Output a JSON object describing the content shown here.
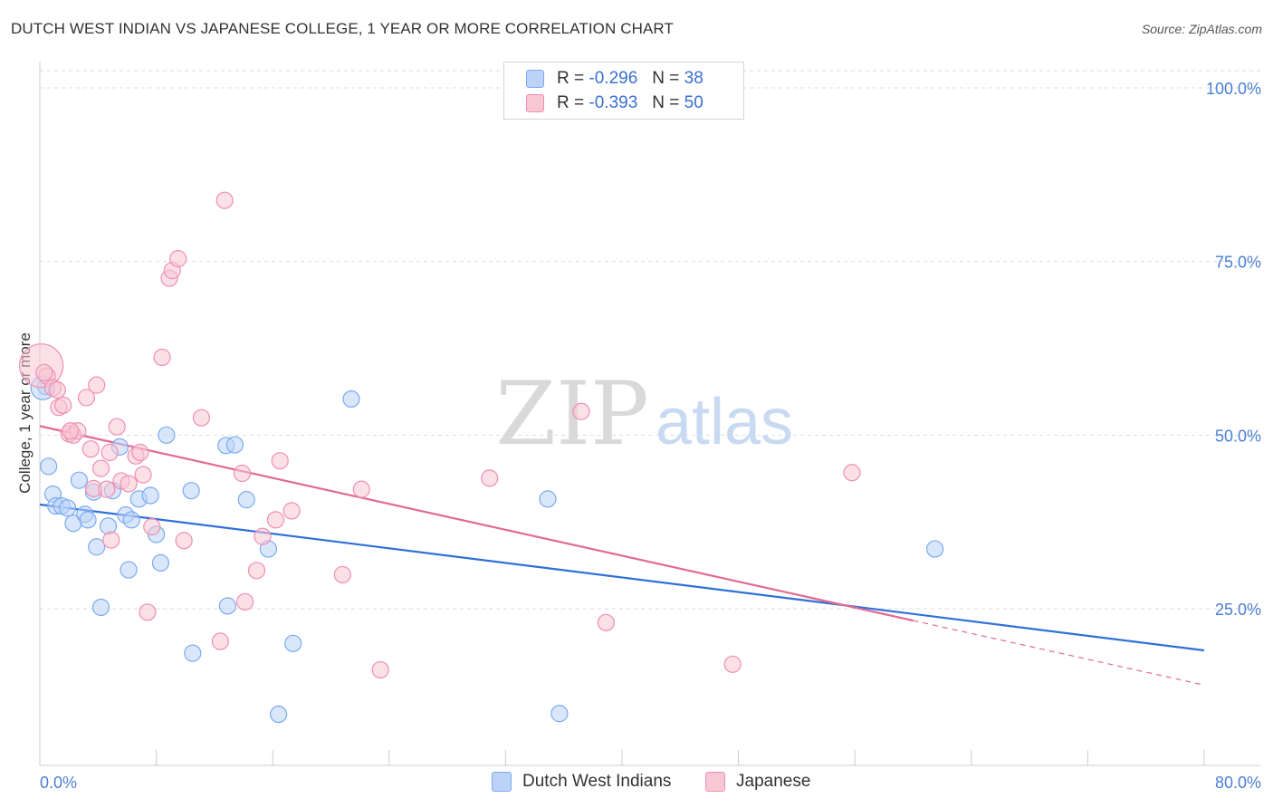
{
  "header": {
    "title": "DUTCH WEST INDIAN VS JAPANESE COLLEGE, 1 YEAR OR MORE CORRELATION CHART",
    "source": "Source: ZipAtlas.com"
  },
  "watermark": {
    "zip": "ZIP",
    "atlas": "atlas"
  },
  "legend": {
    "r_label": "R =",
    "n_label": "N =",
    "series": [
      {
        "name": "Dutch West Indians",
        "r": "-0.296",
        "n": "38",
        "color": "#7aaaf0",
        "fill": "#bcd3f7"
      },
      {
        "name": "Japanese",
        "r": "-0.393",
        "n": "50",
        "color": "#ef8fae",
        "fill": "#f8c7d6"
      }
    ]
  },
  "chart_data": {
    "type": "scatter",
    "title": "DUTCH WEST INDIAN VS JAPANESE COLLEGE, 1 YEAR OR MORE CORRELATION CHART",
    "xlabel": "",
    "ylabel": "College, 1 year or more",
    "xlim": [
      0,
      80
    ],
    "ylim": [
      0,
      105
    ],
    "x_tick_labels": [
      "0.0%",
      "80.0%"
    ],
    "y_ticks": [
      25,
      50,
      75,
      100
    ],
    "y_tick_labels": [
      "25.0%",
      "50.0%",
      "75.0%",
      "100.0%"
    ],
    "series": [
      {
        "name": "Dutch West Indians",
        "color": "#7aaaf0",
        "fill": "#bcd3f7",
        "line_color": "#2f6fd8",
        "trend": {
          "x": [
            0,
            80
          ],
          "y": [
            40.0,
            19.0
          ]
        },
        "points": [
          [
            0.4,
            57.0
          ],
          [
            0.6,
            45.5
          ],
          [
            0.9,
            41.5
          ],
          [
            1.1,
            39.8
          ],
          [
            1.5,
            39.8
          ],
          [
            1.9,
            39.5
          ],
          [
            2.3,
            37.3
          ],
          [
            2.7,
            43.5
          ],
          [
            3.1,
            38.6
          ],
          [
            3.3,
            37.8
          ],
          [
            3.7,
            41.8
          ],
          [
            3.9,
            33.9
          ],
          [
            4.2,
            25.2
          ],
          [
            4.7,
            36.9
          ],
          [
            5.0,
            42.0
          ],
          [
            5.5,
            48.3
          ],
          [
            5.9,
            38.5
          ],
          [
            6.1,
            30.6
          ],
          [
            6.3,
            37.8
          ],
          [
            6.8,
            40.8
          ],
          [
            7.6,
            41.3
          ],
          [
            8.0,
            35.7
          ],
          [
            8.3,
            31.6
          ],
          [
            8.7,
            50.0
          ],
          [
            10.4,
            42.0
          ],
          [
            10.5,
            18.6
          ],
          [
            12.8,
            48.5
          ],
          [
            12.9,
            25.4
          ],
          [
            13.4,
            48.6
          ],
          [
            14.2,
            40.7
          ],
          [
            15.7,
            33.6
          ],
          [
            16.4,
            9.8
          ],
          [
            17.4,
            20.0
          ],
          [
            21.4,
            55.2
          ],
          [
            34.9,
            40.8
          ],
          [
            35.7,
            9.9
          ],
          [
            61.5,
            33.6
          ],
          [
            0.2,
            56.8
          ]
        ]
      },
      {
        "name": "Japanese",
        "color": "#ef8fae",
        "fill": "#f8c7d6",
        "line_color": "#e26a94",
        "trend": {
          "x": [
            0,
            60
          ],
          "y": [
            51.3,
            23.3
          ]
        },
        "trend_dashed": {
          "x": [
            60,
            80
          ],
          "y": [
            23.3,
            14.0
          ]
        },
        "points": [
          [
            0.1,
            60.0
          ],
          [
            0.5,
            58.5
          ],
          [
            0.9,
            56.8
          ],
          [
            1.3,
            54.0
          ],
          [
            1.6,
            54.3
          ],
          [
            2.0,
            50.2
          ],
          [
            2.3,
            50.0
          ],
          [
            2.6,
            50.6
          ],
          [
            3.2,
            55.4
          ],
          [
            3.5,
            48.0
          ],
          [
            3.7,
            42.3
          ],
          [
            3.9,
            57.2
          ],
          [
            4.2,
            45.2
          ],
          [
            4.6,
            42.2
          ],
          [
            4.8,
            47.5
          ],
          [
            4.9,
            34.9
          ],
          [
            5.3,
            51.2
          ],
          [
            5.6,
            43.4
          ],
          [
            6.1,
            43.0
          ],
          [
            6.6,
            47.0
          ],
          [
            6.9,
            47.5
          ],
          [
            7.1,
            44.3
          ],
          [
            7.4,
            24.5
          ],
          [
            7.7,
            36.8
          ],
          [
            8.4,
            61.2
          ],
          [
            8.9,
            72.6
          ],
          [
            9.1,
            73.7
          ],
          [
            9.5,
            75.4
          ],
          [
            9.9,
            34.8
          ],
          [
            11.1,
            52.5
          ],
          [
            12.4,
            20.3
          ],
          [
            12.7,
            83.8
          ],
          [
            13.9,
            44.5
          ],
          [
            14.1,
            26.0
          ],
          [
            14.9,
            30.5
          ],
          [
            15.3,
            35.4
          ],
          [
            16.2,
            37.8
          ],
          [
            16.5,
            46.3
          ],
          [
            17.3,
            39.1
          ],
          [
            20.8,
            29.9
          ],
          [
            22.1,
            42.2
          ],
          [
            23.4,
            16.2
          ],
          [
            30.9,
            43.8
          ],
          [
            37.2,
            53.4
          ],
          [
            38.9,
            23.0
          ],
          [
            47.6,
            17.0
          ],
          [
            55.8,
            44.6
          ],
          [
            0.3,
            59.0
          ],
          [
            1.2,
            56.5
          ],
          [
            2.1,
            50.6
          ]
        ]
      }
    ]
  }
}
